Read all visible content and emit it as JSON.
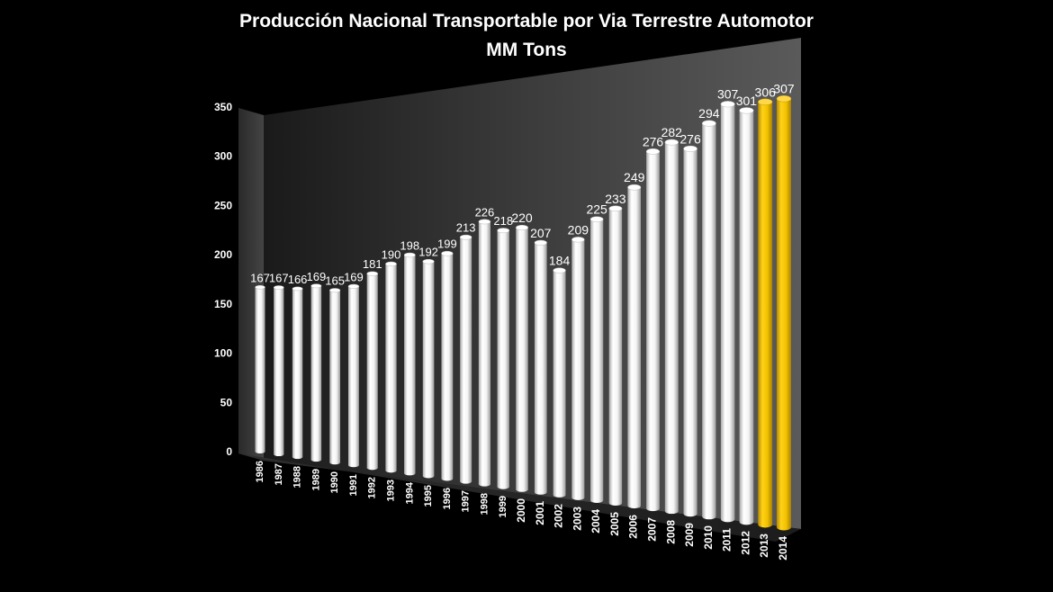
{
  "chart_data": {
    "type": "bar",
    "title": "Producción Nacional Transportable por Via Terrestre Automotor",
    "subtitle": "MM Tons",
    "xlabel": "",
    "ylabel": "",
    "ylim": [
      0,
      350
    ],
    "yticks": [
      "0",
      "50",
      "100",
      "150",
      "200",
      "250",
      "300",
      "350"
    ],
    "grid": false,
    "legend": "none",
    "categories": [
      "1986",
      "1987",
      "1988",
      "1989",
      "1990",
      "1991",
      "1992",
      "1993",
      "1994",
      "1995",
      "1996",
      "1997",
      "1998",
      "1999",
      "2000",
      "2001",
      "2002",
      "2003",
      "2004",
      "2005",
      "2006",
      "2007",
      "2008",
      "2009",
      "2010",
      "2011",
      "2012",
      "2013",
      "2014"
    ],
    "values": [
      167,
      167,
      166,
      169,
      165,
      169,
      181,
      190,
      198,
      192,
      199,
      213,
      226,
      218,
      220,
      207,
      184,
      209,
      225,
      233,
      249,
      276,
      282,
      276,
      294,
      307,
      301,
      306,
      307
    ],
    "data_labels": [
      "167",
      "167",
      "166",
      "169",
      "165",
      "169",
      "181",
      "190",
      "198",
      "192",
      "199",
      "213",
      "226",
      "218",
      "220",
      "207",
      "184",
      "209",
      "225",
      "233",
      "249",
      "276",
      "282",
      "276",
      "294",
      "307",
      "301",
      "306",
      "307"
    ],
    "colors": {
      "default_bar": "#ffffff",
      "highlight_bar": "#f2c200",
      "background": "#000000",
      "text": "#ffffff"
    },
    "highlighted_categories": [
      "2013",
      "2014"
    ]
  }
}
